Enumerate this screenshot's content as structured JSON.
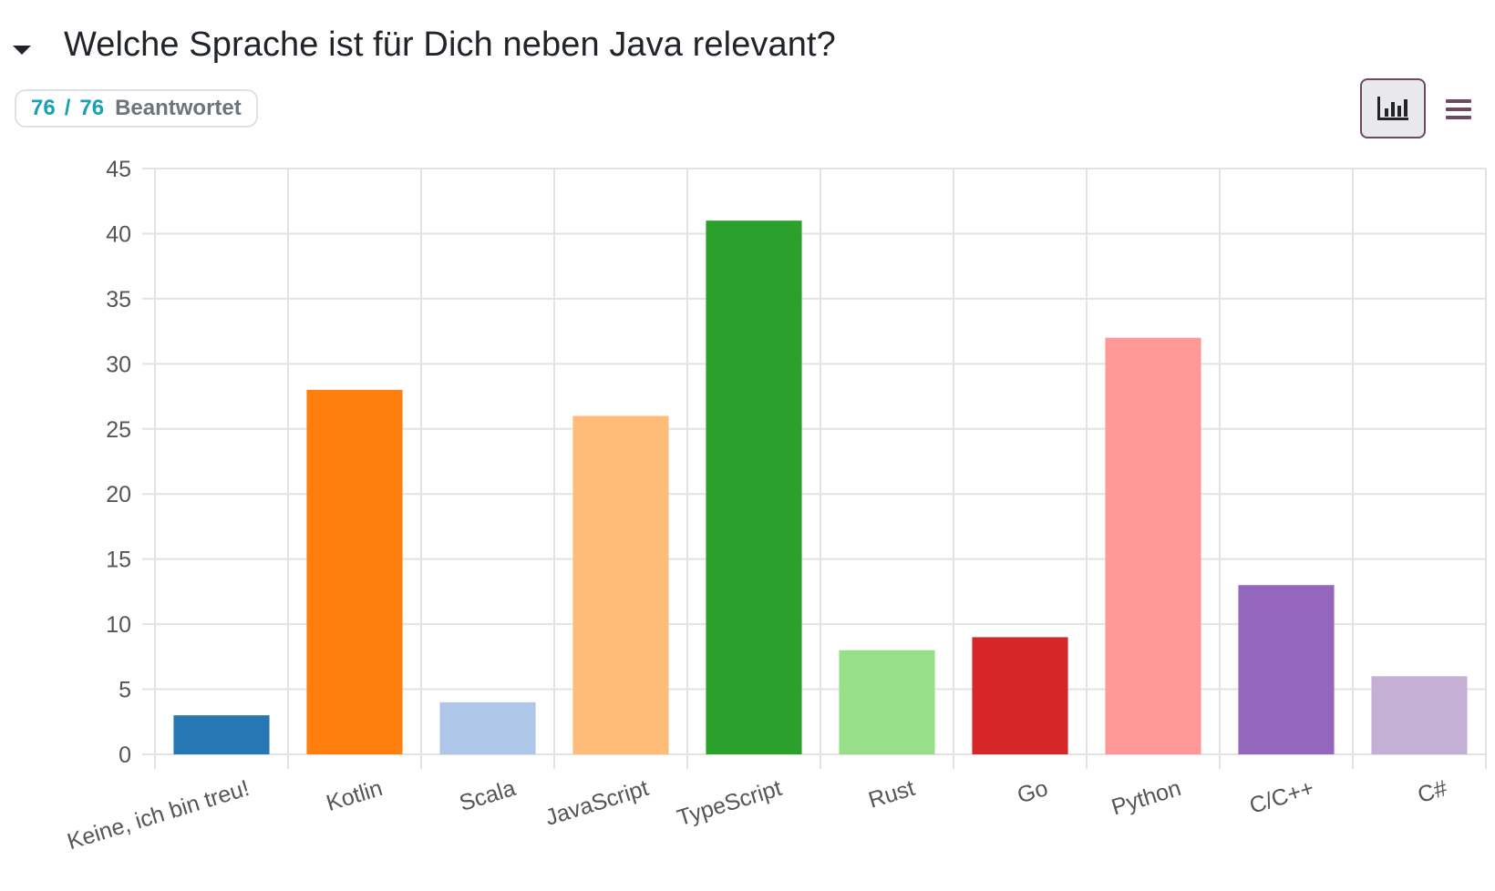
{
  "question": {
    "title": "Welche Sprache ist für Dich neben Java relevant?",
    "answered": "76",
    "total": "76",
    "separator": "/",
    "answered_label": "Beantwortet"
  },
  "toolbar": {
    "chart_view_icon": "bar-chart-icon",
    "list_view_icon": "list-icon"
  },
  "chart_data": {
    "type": "bar",
    "categories": [
      "Keine, ich bin treu!",
      "Kotlin",
      "Scala",
      "JavaScript",
      "TypeScript",
      "Rust",
      "Go",
      "Python",
      "C/C++",
      "C#"
    ],
    "values": [
      3,
      28,
      4,
      26,
      41,
      8,
      9,
      32,
      13,
      6
    ],
    "colors": [
      "#2677b4",
      "#ff7f0e",
      "#aec7e8",
      "#ffbb78",
      "#2ca02c",
      "#98df8a",
      "#d62728",
      "#ff9896",
      "#9467bd",
      "#c5b0d5"
    ],
    "ylim": [
      0,
      45
    ],
    "yticks": [
      0,
      5,
      10,
      15,
      20,
      25,
      30,
      35,
      40,
      45
    ],
    "grid": true,
    "legend": "none"
  }
}
